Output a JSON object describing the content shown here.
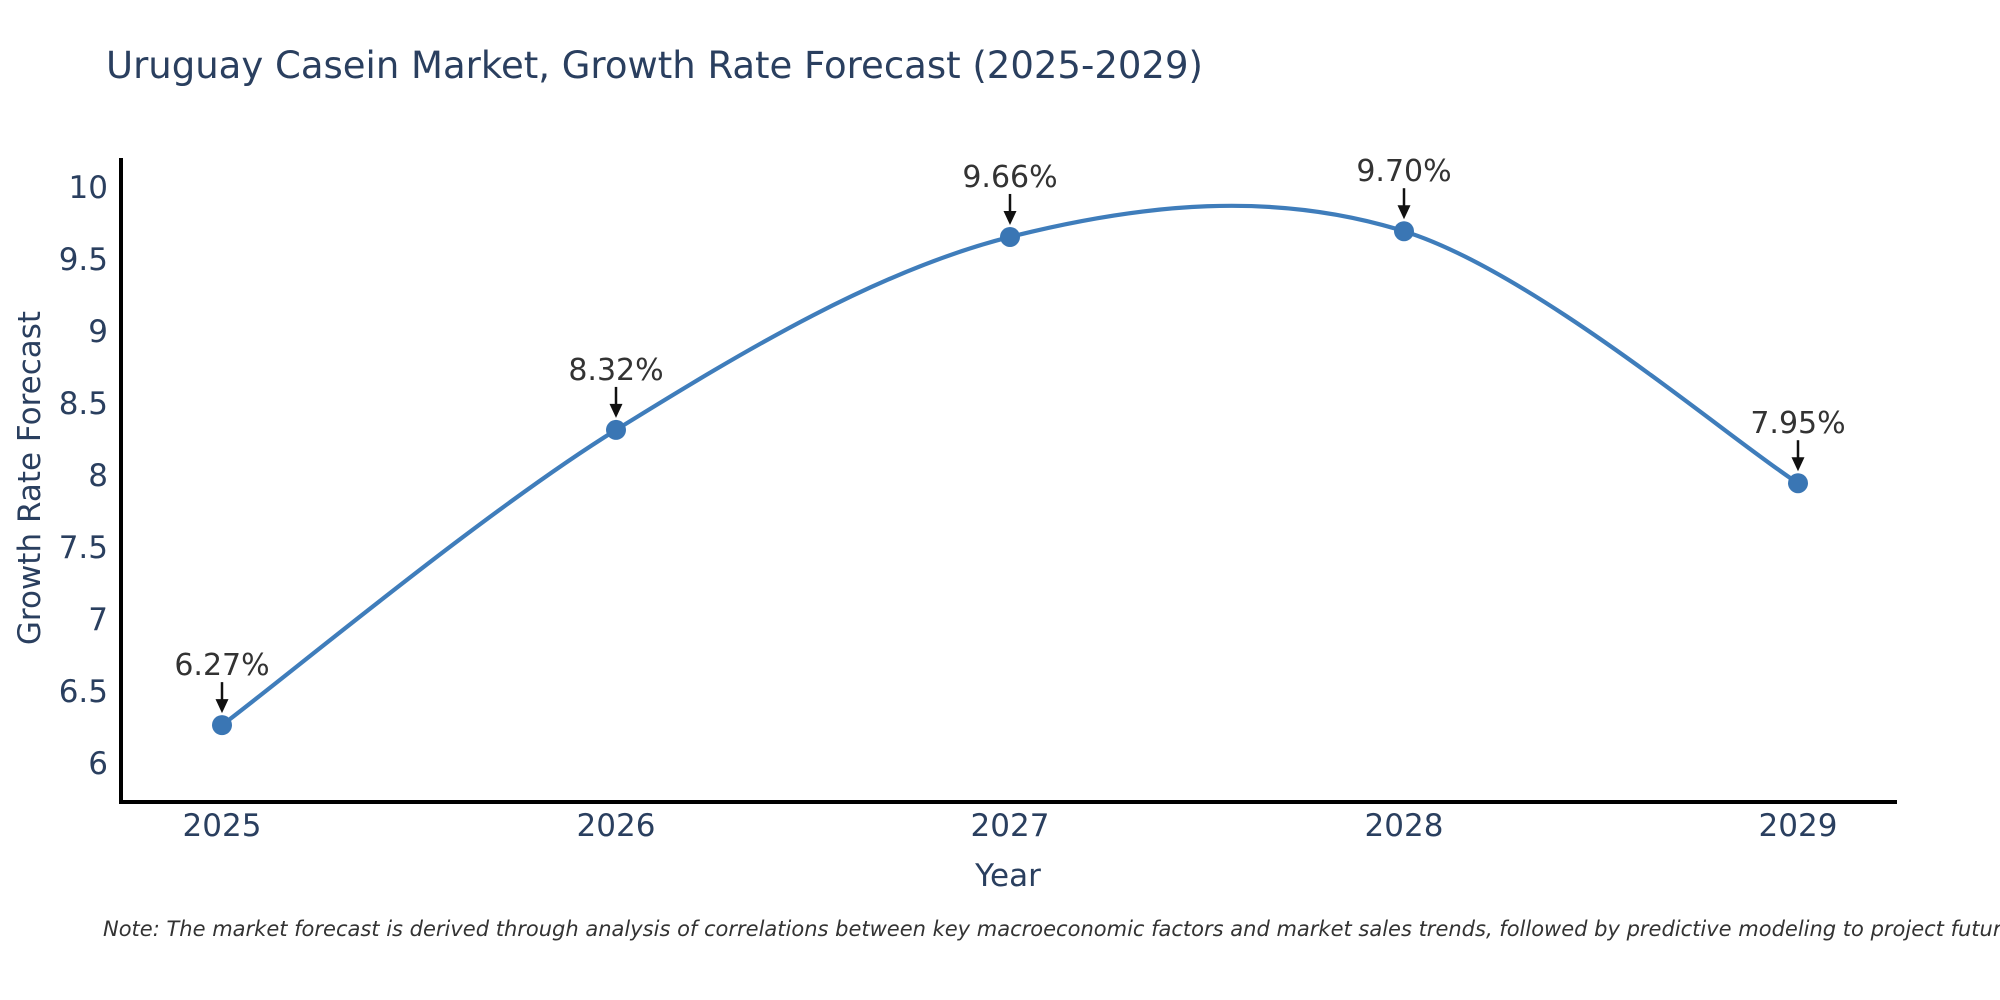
{
  "title": "Uruguay Casein Market, Growth Rate Forecast (2025-2029)",
  "note": "Note: The market forecast is derived through analysis of correlations between key macroeconomic factors and market sales trends, followed by predictive modeling to project future sales",
  "chart_data": {
    "type": "line",
    "line_shape": "spline",
    "title": "Uruguay Casein Market, Growth Rate Forecast (2025-2029)",
    "xlabel": "Year",
    "ylabel": "Growth Rate Forecast",
    "x": [
      2025,
      2026,
      2027,
      2028,
      2029
    ],
    "series": [
      {
        "name": "Growth Rate Forecast",
        "values": [
          6.27,
          8.32,
          9.66,
          9.7,
          7.95
        ]
      }
    ],
    "point_labels": [
      "6.27%",
      "8.32%",
      "9.66%",
      "9.70%",
      "7.95%"
    ],
    "x_tick_labels": [
      "2025",
      "2026",
      "2027",
      "2028",
      "2029"
    ],
    "y_ticks": [
      6,
      6.5,
      7,
      7.5,
      8,
      8.5,
      9,
      9.5,
      10
    ],
    "y_tick_labels": [
      "6",
      "6.5",
      "7",
      "7.5",
      "8",
      "8.5",
      "9",
      "9.5",
      "10"
    ],
    "ylim": [
      5.74,
      10.2
    ],
    "grid": false,
    "legend": "none",
    "annotation_style": "value label above point with down arrow",
    "colors": {
      "line": "#3f7dbb",
      "marker": "#3a76b4",
      "axis": "#000000",
      "tick_text": "#2a3f5f",
      "annotation_text": "#333333"
    }
  }
}
